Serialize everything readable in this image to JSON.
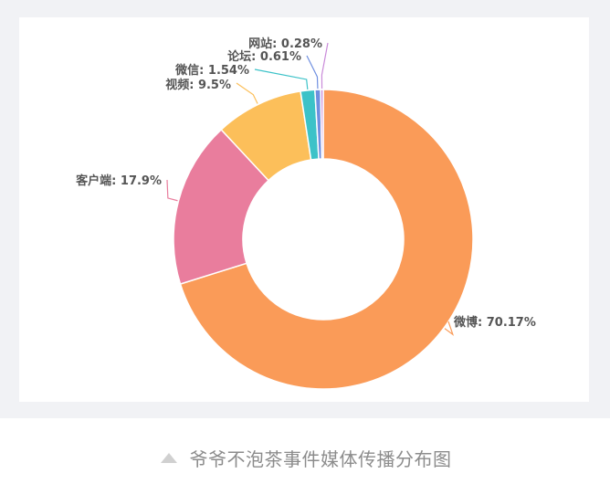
{
  "caption": {
    "text": "爷爷不泡茶事件媒体传播分布图",
    "icon": "triangle-up-icon"
  },
  "chart_data": {
    "type": "pie",
    "donut": true,
    "title": "",
    "slices": [
      {
        "name": "微博",
        "value": 70.17,
        "label": "微博: 70.17%",
        "color": "#fa9b58"
      },
      {
        "name": "客户端",
        "value": 17.9,
        "label": "客户端: 17.9%",
        "color": "#e97d9d"
      },
      {
        "name": "视频",
        "value": 9.5,
        "label": "视频: 9.5%",
        "color": "#fcbf5a"
      },
      {
        "name": "微信",
        "value": 1.54,
        "label": "微信: 1.54%",
        "color": "#3cc2c8"
      },
      {
        "name": "论坛",
        "value": 0.61,
        "label": "论坛: 0.61%",
        "color": "#6f8fe0"
      },
      {
        "name": "网站",
        "value": 0.28,
        "label": "网站: 0.28%",
        "color": "#c98ad9"
      }
    ]
  }
}
